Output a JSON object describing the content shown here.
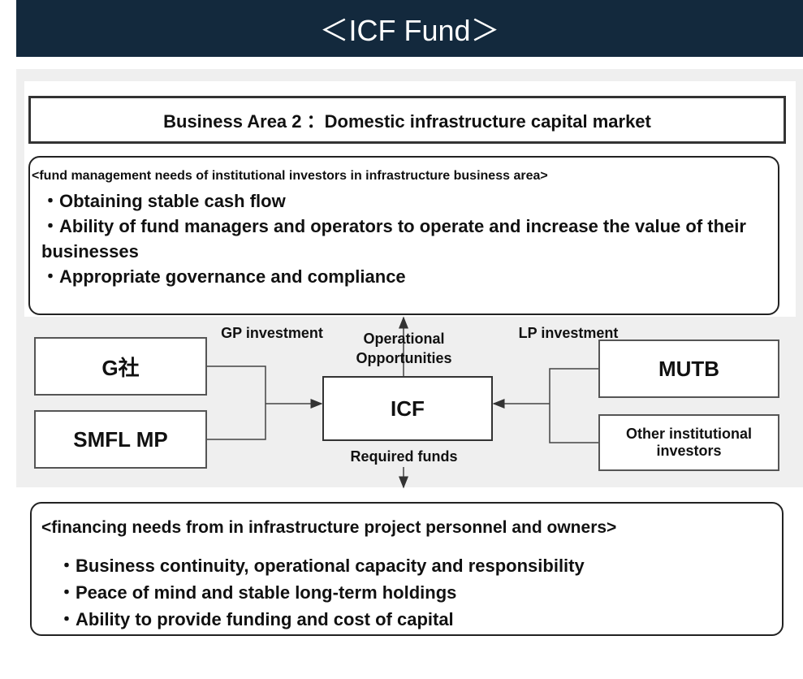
{
  "header": {
    "title": "＜ICF Fund＞"
  },
  "business_area": {
    "text": "Business Area 2 ：Domestic infrastructure capital market"
  },
  "investor_needs": {
    "heading": "<fund management needs of institutional investors in infrastructure business area>",
    "items": [
      "・Obtaining stable cash flow",
      "・Ability of fund managers and operators to operate and increase the value of their businesses",
      "・Appropriate governance and compliance"
    ]
  },
  "diagram": {
    "gp_label": "GP investment",
    "lp_label": "LP investment",
    "up_label": "Operational Opportunities",
    "down_label": "Required funds",
    "nodes": [
      {
        "label": "G社"
      },
      {
        "label": "SMFL MP"
      },
      {
        "label": "ICF"
      },
      {
        "label": "MUTB"
      },
      {
        "label": "Other institutional investors"
      }
    ]
  },
  "project_needs": {
    "heading": "<financing needs from in infrastructure project personnel and owners>",
    "items": [
      "・Business continuity, operational capacity and responsibility",
      "・Peace of mind and stable long-term holdings",
      "・Ability to provide funding and cost of capital"
    ]
  }
}
